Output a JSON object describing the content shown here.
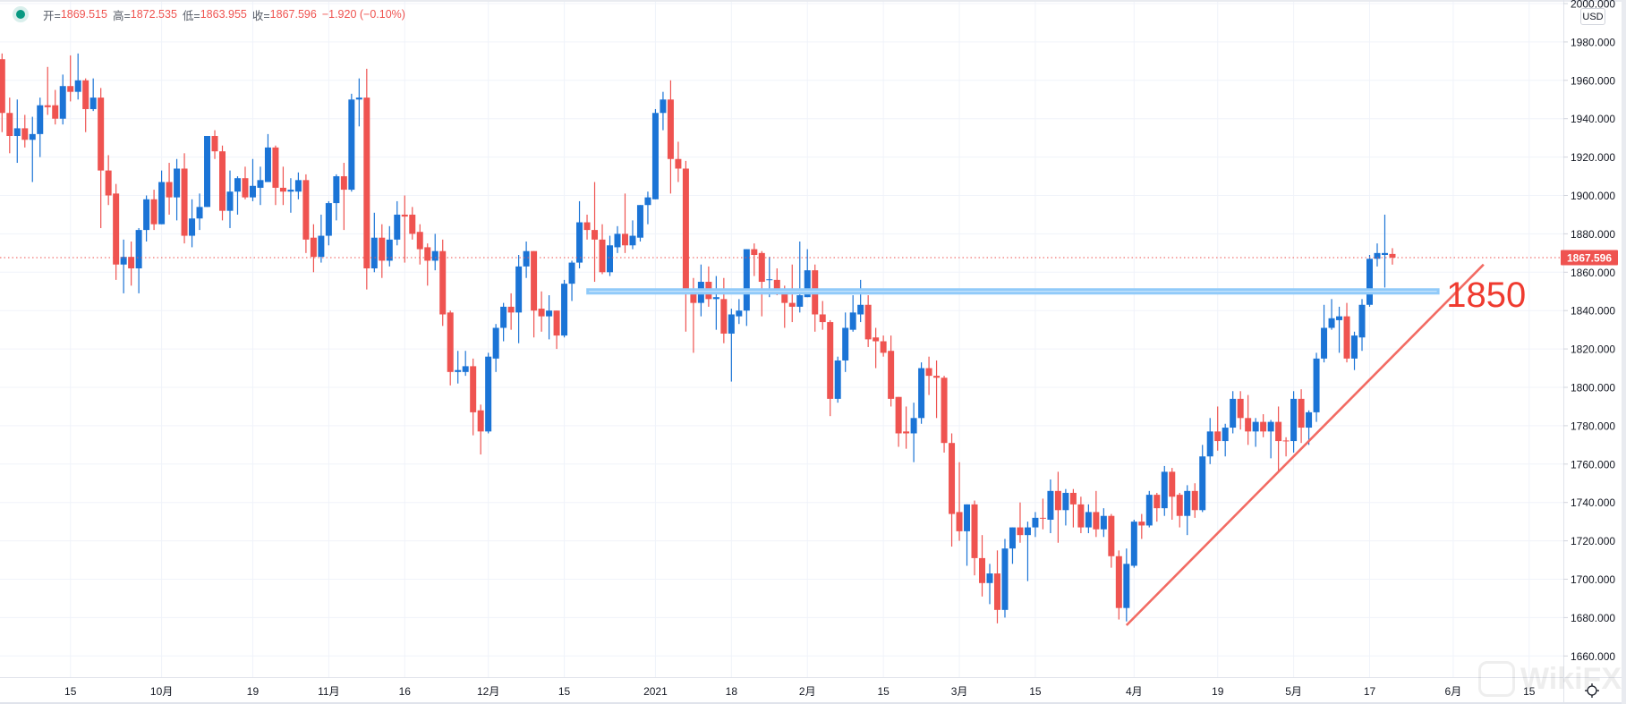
{
  "header": {
    "open_label": "开=",
    "open": "1869.515",
    "high_label": "高=",
    "high": "1872.535",
    "low_label": "低=",
    "low": "1863.955",
    "close_label": "收=",
    "close": "1867.596",
    "change": "−1.920 (−0.10%)",
    "status_color": "#089981"
  },
  "axis": {
    "currency": "USD",
    "last_price_label": "1867.596",
    "settings_icon": "gear-icon"
  },
  "watermark": "WikiFX",
  "colors": {
    "up": "#1b74d6",
    "down": "#ef5350",
    "level": "#90caf9",
    "trend": "#f26b63",
    "annotation_text": "#ef3b30",
    "grid": "#f0f3fa"
  },
  "chart_data": {
    "type": "candlestick",
    "title": "",
    "ylabel": "USD",
    "ylim": [
      1649,
      2002
    ],
    "grid": true,
    "y_ticks": [
      2000,
      1980,
      1960,
      1940,
      1920,
      1900,
      1880,
      1860,
      1840,
      1820,
      1800,
      1780,
      1760,
      1740,
      1720,
      1700,
      1680,
      1660
    ],
    "y_tick_labels": [
      "2000.000",
      "1980.000",
      "1960.000",
      "1940.000",
      "1920.000",
      "1900.000",
      "1880.000",
      "1860.000",
      "1840.000",
      "1820.000",
      "1800.000",
      "1780.000",
      "1760.000",
      "1740.000",
      "1720.000",
      "1700.000",
      "1680.000",
      "1660.000"
    ],
    "x_ticks": [
      {
        "label": "15",
        "index": 9
      },
      {
        "label": "10月",
        "index": 21
      },
      {
        "label": "19",
        "index": 33
      },
      {
        "label": "11月",
        "index": 43
      },
      {
        "label": "16",
        "index": 53
      },
      {
        "label": "12月",
        "index": 64
      },
      {
        "label": "15",
        "index": 74
      },
      {
        "label": "2021",
        "index": 86
      },
      {
        "label": "18",
        "index": 96
      },
      {
        "label": "2月",
        "index": 106
      },
      {
        "label": "15",
        "index": 116
      },
      {
        "label": "3月",
        "index": 126
      },
      {
        "label": "15",
        "index": 136
      },
      {
        "label": "4月",
        "index": 149
      },
      {
        "label": "19",
        "index": 160
      },
      {
        "label": "5月",
        "index": 170
      },
      {
        "label": "17",
        "index": 180
      },
      {
        "label": "6月",
        "index": 191
      },
      {
        "label": "15",
        "index": 201
      }
    ],
    "ohlc_fields": [
      "open",
      "high",
      "low",
      "close"
    ],
    "candles": [
      [
        1971,
        1974,
        1933,
        1943
      ],
      [
        1943,
        1951,
        1922,
        1931
      ],
      [
        1931,
        1950,
        1917,
        1935
      ],
      [
        1935,
        1942,
        1925,
        1929
      ],
      [
        1929,
        1941,
        1907,
        1932
      ],
      [
        1932,
        1951,
        1920,
        1947
      ],
      [
        1947,
        1967,
        1942,
        1946
      ],
      [
        1947,
        1955,
        1937,
        1940
      ],
      [
        1940,
        1963,
        1937,
        1957
      ],
      [
        1957,
        1973,
        1949,
        1954
      ],
      [
        1954,
        1974,
        1950,
        1960
      ],
      [
        1960,
        1961,
        1933,
        1945
      ],
      [
        1945,
        1961,
        1944,
        1951
      ],
      [
        1951,
        1956,
        1883,
        1913
      ],
      [
        1913,
        1921,
        1895,
        1900
      ],
      [
        1901,
        1906,
        1856,
        1864
      ],
      [
        1864,
        1877,
        1849,
        1868
      ],
      [
        1868,
        1876,
        1853,
        1862
      ],
      [
        1862,
        1883,
        1849,
        1882
      ],
      [
        1882,
        1900,
        1876,
        1898
      ],
      [
        1898,
        1903,
        1882,
        1885
      ],
      [
        1885,
        1913,
        1885,
        1907
      ],
      [
        1907,
        1917,
        1890,
        1899
      ],
      [
        1899,
        1919,
        1887,
        1914
      ],
      [
        1914,
        1922,
        1875,
        1879
      ],
      [
        1879,
        1898,
        1873,
        1888
      ],
      [
        1888,
        1901,
        1882,
        1894
      ],
      [
        1894,
        1931,
        1894,
        1931
      ],
      [
        1931,
        1934,
        1919,
        1923
      ],
      [
        1923,
        1926,
        1887,
        1892
      ],
      [
        1892,
        1913,
        1883,
        1902
      ],
      [
        1902,
        1910,
        1890,
        1909
      ],
      [
        1909,
        1915,
        1898,
        1899
      ],
      [
        1899,
        1919,
        1897,
        1905
      ],
      [
        1904,
        1915,
        1895,
        1908
      ],
      [
        1907,
        1932,
        1907,
        1925
      ],
      [
        1925,
        1926,
        1895,
        1904
      ],
      [
        1904,
        1915,
        1895,
        1902
      ],
      [
        1902,
        1909,
        1891,
        1903
      ],
      [
        1902,
        1912,
        1898,
        1908
      ],
      [
        1908,
        1911,
        1870,
        1877
      ],
      [
        1878,
        1885,
        1860,
        1868
      ],
      [
        1868,
        1890,
        1865,
        1879
      ],
      [
        1879,
        1897,
        1874,
        1896
      ],
      [
        1896,
        1911,
        1887,
        1910
      ],
      [
        1910,
        1917,
        1882,
        1903
      ],
      [
        1903,
        1953,
        1902,
        1950
      ],
      [
        1950,
        1961,
        1936,
        1951
      ],
      [
        1951,
        1966,
        1851,
        1862
      ],
      [
        1862,
        1891,
        1860,
        1878
      ],
      [
        1878,
        1885,
        1857,
        1866
      ],
      [
        1866,
        1884,
        1863,
        1877
      ],
      [
        1877,
        1897,
        1874,
        1890
      ],
      [
        1890,
        1900,
        1865,
        1889
      ],
      [
        1890,
        1894,
        1877,
        1880
      ],
      [
        1881,
        1885,
        1864,
        1872
      ],
      [
        1873,
        1875,
        1853,
        1866
      ],
      [
        1866,
        1880,
        1861,
        1871
      ],
      [
        1871,
        1877,
        1832,
        1838
      ],
      [
        1839,
        1840,
        1801,
        1808
      ],
      [
        1808,
        1819,
        1802,
        1809
      ],
      [
        1808,
        1819,
        1806,
        1811
      ],
      [
        1811,
        1815,
        1775,
        1787
      ],
      [
        1788,
        1791,
        1765,
        1777
      ],
      [
        1777,
        1818,
        1776,
        1816
      ],
      [
        1815,
        1833,
        1808,
        1831
      ],
      [
        1831,
        1844,
        1824,
        1842
      ],
      [
        1842,
        1849,
        1830,
        1839
      ],
      [
        1839,
        1869,
        1823,
        1863
      ],
      [
        1863,
        1876,
        1857,
        1871
      ],
      [
        1871,
        1871,
        1826,
        1840
      ],
      [
        1841,
        1850,
        1829,
        1837
      ],
      [
        1837,
        1848,
        1825,
        1840
      ],
      [
        1840,
        1840,
        1820,
        1827
      ],
      [
        1827,
        1856,
        1826,
        1854
      ],
      [
        1854,
        1866,
        1845,
        1865
      ],
      [
        1865,
        1897,
        1862,
        1886
      ],
      [
        1886,
        1890,
        1877,
        1882
      ],
      [
        1882,
        1907,
        1855,
        1877
      ],
      [
        1877,
        1885,
        1859,
        1860
      ],
      [
        1860,
        1879,
        1858,
        1874
      ],
      [
        1873,
        1884,
        1870,
        1880
      ],
      [
        1880,
        1901,
        1870,
        1874
      ],
      [
        1874,
        1887,
        1872,
        1879
      ],
      [
        1878,
        1895,
        1876,
        1895
      ],
      [
        1895,
        1902,
        1885,
        1899
      ],
      [
        1898,
        1945,
        1898,
        1943
      ],
      [
        1943,
        1954,
        1934,
        1950
      ],
      [
        1950,
        1960,
        1901,
        1919
      ],
      [
        1919,
        1928,
        1907,
        1914
      ],
      [
        1914,
        1918,
        1829,
        1850
      ],
      [
        1850,
        1857,
        1818,
        1844
      ],
      [
        1844,
        1864,
        1837,
        1855
      ],
      [
        1855,
        1863,
        1842,
        1846
      ],
      [
        1846,
        1858,
        1830,
        1847
      ],
      [
        1846,
        1857,
        1823,
        1828
      ],
      [
        1828,
        1841,
        1803,
        1838
      ],
      [
        1837,
        1846,
        1833,
        1840
      ],
      [
        1840,
        1872,
        1832,
        1872
      ],
      [
        1872,
        1875,
        1858,
        1869
      ],
      [
        1870,
        1871,
        1837,
        1855
      ],
      [
        1856,
        1868,
        1847,
        1856.3
      ],
      [
        1856,
        1862,
        1848,
        1850
      ],
      [
        1850,
        1853,
        1831,
        1844
      ],
      [
        1844,
        1864,
        1834,
        1842
      ],
      [
        1842,
        1876,
        1839,
        1848
      ],
      [
        1847,
        1872,
        1847,
        1861
      ],
      [
        1861,
        1864,
        1829,
        1838
      ],
      [
        1838,
        1845,
        1830,
        1834
      ],
      [
        1834,
        1835,
        1785,
        1794
      ],
      [
        1794,
        1816,
        1792,
        1814
      ],
      [
        1814,
        1839,
        1808,
        1831
      ],
      [
        1830,
        1848,
        1829,
        1839
      ],
      [
        1838,
        1856,
        1834,
        1843
      ],
      [
        1843,
        1848,
        1821,
        1825
      ],
      [
        1826,
        1831,
        1810,
        1824
      ],
      [
        1824,
        1827,
        1816,
        1818
      ],
      [
        1819,
        1827,
        1790,
        1794
      ],
      [
        1795,
        1795,
        1769,
        1776
      ],
      [
        1777,
        1790,
        1768,
        1776
      ],
      [
        1776,
        1792,
        1761,
        1784
      ],
      [
        1784,
        1813,
        1781,
        1810
      ],
      [
        1810,
        1816,
        1796,
        1806
      ],
      [
        1806,
        1814,
        1784,
        1805
      ],
      [
        1805,
        1806,
        1766,
        1771
      ],
      [
        1771,
        1776,
        1717,
        1734
      ],
      [
        1735,
        1761,
        1720,
        1725
      ],
      [
        1725,
        1739,
        1707,
        1739
      ],
      [
        1739,
        1741,
        1702,
        1711
      ],
      [
        1711,
        1723,
        1691,
        1698
      ],
      [
        1698,
        1708,
        1687,
        1703
      ],
      [
        1703,
        1715,
        1677,
        1684
      ],
      [
        1684,
        1721,
        1680,
        1716
      ],
      [
        1716,
        1727,
        1708,
        1727
      ],
      [
        1727,
        1740,
        1719,
        1723
      ],
      [
        1723,
        1730,
        1699,
        1727
      ],
      [
        1727,
        1735,
        1722,
        1732
      ],
      [
        1732,
        1742,
        1726,
        1731.6
      ],
      [
        1731,
        1752,
        1724,
        1746
      ],
      [
        1746,
        1756,
        1719,
        1736
      ],
      [
        1736,
        1747,
        1728,
        1745
      ],
      [
        1745,
        1747,
        1727,
        1739
      ],
      [
        1739,
        1743,
        1724,
        1727
      ],
      [
        1727,
        1739,
        1724,
        1735
      ],
      [
        1735,
        1746,
        1722,
        1726
      ],
      [
        1726,
        1737,
        1722,
        1733
      ],
      [
        1733,
        1734,
        1706,
        1712
      ],
      [
        1712,
        1715,
        1679,
        1685
      ],
      [
        1685,
        1716,
        1678,
        1708
      ],
      [
        1707,
        1731,
        1706,
        1730
      ],
      [
        1730,
        1734,
        1721,
        1728
      ],
      [
        1728,
        1746,
        1727,
        1744
      ],
      [
        1744,
        1745,
        1730,
        1737
      ],
      [
        1737,
        1759,
        1733,
        1756
      ],
      [
        1756,
        1758,
        1731,
        1743
      ],
      [
        1744,
        1745,
        1727,
        1733
      ],
      [
        1733,
        1749,
        1723,
        1746
      ],
      [
        1746,
        1750,
        1732,
        1736
      ],
      [
        1736,
        1770,
        1735,
        1764
      ],
      [
        1764,
        1784,
        1760,
        1777
      ],
      [
        1777,
        1790,
        1767,
        1772
      ],
      [
        1772,
        1781,
        1764,
        1779
      ],
      [
        1779,
        1798,
        1776,
        1794
      ],
      [
        1794,
        1798,
        1778,
        1784
      ],
      [
        1784,
        1796,
        1770,
        1777
      ],
      [
        1777,
        1784,
        1769,
        1782
      ],
      [
        1782,
        1786,
        1774,
        1777
      ],
      [
        1777,
        1783,
        1763,
        1782
      ],
      [
        1782,
        1790,
        1756,
        1772
      ],
      [
        1772.3,
        1774,
        1764,
        1772
      ],
      [
        1772,
        1798,
        1766,
        1794
      ],
      [
        1794,
        1799,
        1771,
        1779
      ],
      [
        1779,
        1788,
        1770,
        1787
      ],
      [
        1787,
        1818,
        1782,
        1815
      ],
      [
        1815,
        1843,
        1813,
        1831
      ],
      [
        1831,
        1846,
        1830,
        1836
      ],
      [
        1835,
        1842,
        1818,
        1837
      ],
      [
        1837,
        1844,
        1813,
        1815
      ],
      [
        1815,
        1829,
        1809,
        1827
      ],
      [
        1826,
        1846,
        1819,
        1843
      ],
      [
        1843,
        1869,
        1842,
        1867
      ],
      [
        1867,
        1875,
        1863,
        1870
      ],
      [
        1869,
        1890,
        1852,
        1870
      ],
      [
        1869.515,
        1872.535,
        1863.955,
        1867.596
      ]
    ],
    "last_price": 1867.596,
    "annotations": {
      "level": {
        "price": 1850,
        "from_index": 76.9,
        "to_index": 189.2
      },
      "trendline": {
        "from": {
          "index": 148,
          "price": 1676
        },
        "to": {
          "index": 195,
          "price": 1864
        }
      },
      "label": {
        "text": "1850",
        "index": 190.1,
        "price": 1842
      }
    }
  }
}
